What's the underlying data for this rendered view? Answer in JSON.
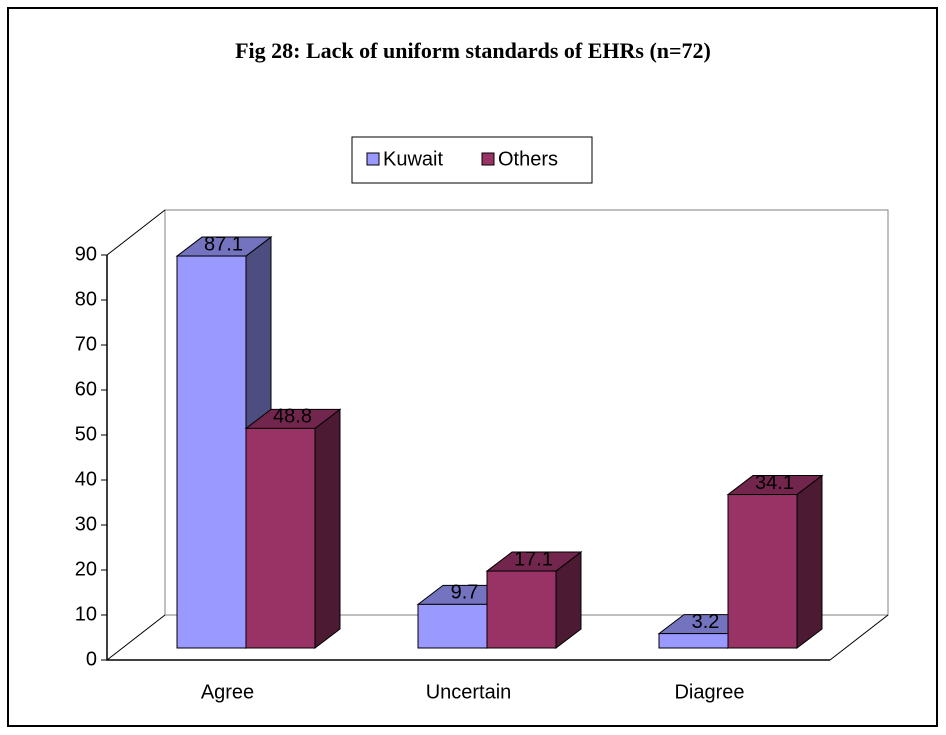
{
  "chart_data": {
    "type": "bar3d",
    "title": "Fig 28: Lack of uniform standards of EHRs (n=72)",
    "categories": [
      "Agree",
      "Uncertain",
      "Diagree"
    ],
    "series": [
      {
        "name": "Kuwait",
        "color": "#9999ff",
        "values": [
          87.1,
          9.7,
          3.2
        ]
      },
      {
        "name": "Others",
        "color": "#993366",
        "values": [
          48.8,
          17.1,
          34.1
        ]
      }
    ],
    "ylim": [
      0,
      90
    ],
    "yticks": [
      0,
      10,
      20,
      30,
      40,
      50,
      60,
      70,
      80,
      90
    ],
    "legend": "top"
  }
}
